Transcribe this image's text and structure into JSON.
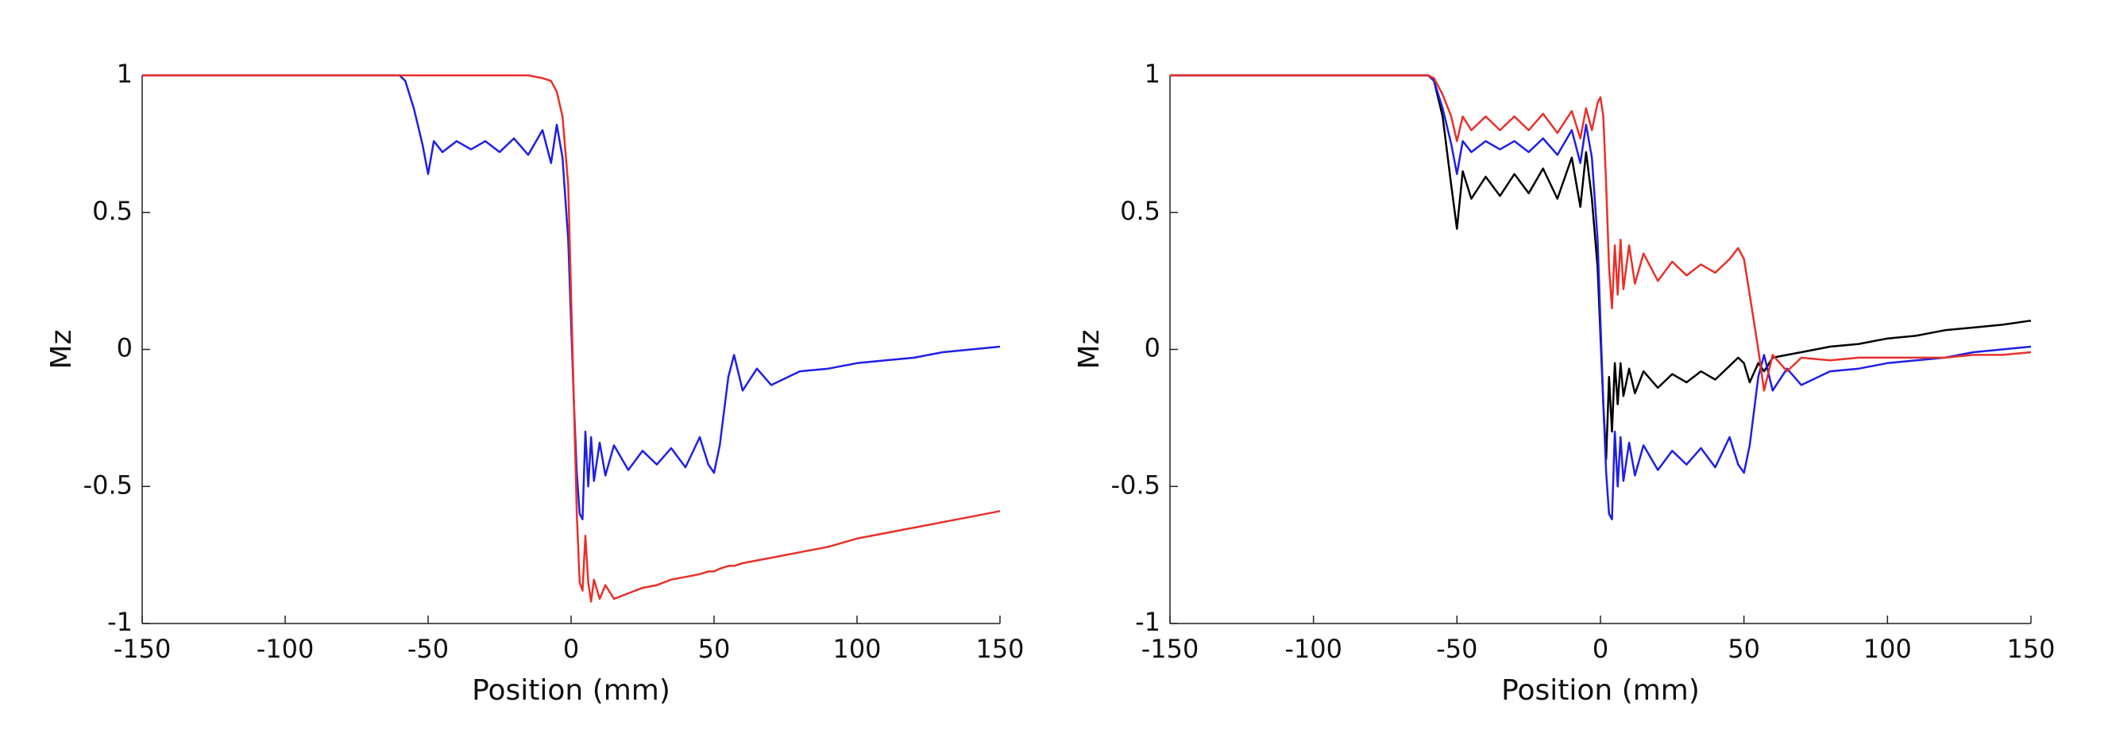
{
  "chart_data": [
    {
      "type": "line",
      "xlabel": "Position (mm)",
      "ylabel": "Mz",
      "x": [
        -150,
        -100,
        -70,
        -60,
        -58,
        -55,
        -52,
        -50,
        -48,
        -45,
        -40,
        -35,
        -30,
        -25,
        -20,
        -15,
        -10,
        -7,
        -5,
        -3,
        -1,
        0,
        1,
        2,
        3,
        4,
        5,
        6,
        7,
        8,
        10,
        12,
        15,
        20,
        25,
        30,
        35,
        40,
        45,
        48,
        50,
        52,
        55,
        57,
        60,
        65,
        70,
        80,
        90,
        100,
        110,
        120,
        130,
        140,
        150
      ],
      "xlim": [
        -150,
        150
      ],
      "xticks": [
        -150,
        -100,
        -50,
        0,
        50,
        100,
        150
      ],
      "ylim": [
        -1,
        1
      ],
      "yticks": [
        -1,
        -0.5,
        0,
        0.5,
        1
      ],
      "series": [
        {
          "color": "#1f1fe6",
          "values": [
            1,
            1,
            1,
            1,
            0.98,
            0.88,
            0.75,
            0.64,
            0.76,
            0.72,
            0.76,
            0.73,
            0.76,
            0.72,
            0.77,
            0.71,
            0.8,
            0.68,
            0.82,
            0.7,
            0.4,
            0.1,
            -0.2,
            -0.45,
            -0.6,
            -0.62,
            -0.3,
            -0.5,
            -0.32,
            -0.48,
            -0.34,
            -0.46,
            -0.35,
            -0.44,
            -0.37,
            -0.42,
            -0.36,
            -0.43,
            -0.32,
            -0.42,
            -0.45,
            -0.35,
            -0.1,
            -0.02,
            -0.15,
            -0.07,
            -0.13,
            -0.08,
            -0.07,
            -0.05,
            -0.04,
            -0.03,
            -0.01,
            0,
            0.01
          ]
        },
        {
          "color": "#e8302a",
          "values": [
            1,
            1,
            1,
            1,
            1,
            1,
            1,
            1,
            1,
            1,
            1,
            1,
            1,
            1,
            1,
            1,
            0.99,
            0.98,
            0.94,
            0.85,
            0.6,
            0.2,
            -0.2,
            -0.6,
            -0.85,
            -0.88,
            -0.68,
            -0.85,
            -0.92,
            -0.84,
            -0.91,
            -0.86,
            -0.91,
            -0.89,
            -0.87,
            -0.86,
            -0.84,
            -0.83,
            -0.82,
            -0.81,
            -0.81,
            -0.8,
            -0.79,
            -0.79,
            -0.78,
            -0.77,
            -0.76,
            -0.74,
            -0.72,
            -0.69,
            -0.67,
            -0.65,
            -0.63,
            -0.61,
            -0.59
          ]
        }
      ]
    },
    {
      "type": "line",
      "xlabel": "Position (mm)",
      "ylabel": "Mz",
      "x": [
        -150,
        -100,
        -70,
        -60,
        -58,
        -55,
        -52,
        -50,
        -48,
        -45,
        -40,
        -35,
        -30,
        -25,
        -20,
        -15,
        -10,
        -7,
        -5,
        -3,
        -1,
        0,
        1,
        2,
        3,
        4,
        5,
        6,
        7,
        8,
        10,
        12,
        15,
        20,
        25,
        30,
        35,
        40,
        45,
        48,
        50,
        52,
        55,
        57,
        60,
        65,
        70,
        80,
        90,
        100,
        110,
        120,
        130,
        140,
        150
      ],
      "xlim": [
        -150,
        150
      ],
      "xticks": [
        -150,
        -100,
        -50,
        0,
        50,
        100,
        150
      ],
      "ylim": [
        -1,
        1
      ],
      "yticks": [
        -1,
        -0.5,
        0,
        0.5,
        1
      ],
      "series": [
        {
          "color": "#000000",
          "values": [
            1,
            1,
            1,
            1,
            0.98,
            0.85,
            0.6,
            0.44,
            0.65,
            0.55,
            0.63,
            0.56,
            0.64,
            0.57,
            0.66,
            0.55,
            0.7,
            0.52,
            0.72,
            0.55,
            0.3,
            0.05,
            -0.2,
            -0.4,
            -0.1,
            -0.3,
            -0.05,
            -0.2,
            -0.05,
            -0.17,
            -0.07,
            -0.16,
            -0.08,
            -0.14,
            -0.09,
            -0.12,
            -0.08,
            -0.11,
            -0.06,
            -0.03,
            -0.05,
            -0.12,
            -0.05,
            -0.08,
            -0.03,
            -0.02,
            -0.01,
            0.01,
            0.02,
            0.04,
            0.05,
            0.07,
            0.08,
            0.09,
            0.105
          ]
        },
        {
          "color": "#1f1fe6",
          "values": [
            1,
            1,
            1,
            1,
            0.98,
            0.88,
            0.75,
            0.64,
            0.76,
            0.72,
            0.76,
            0.73,
            0.76,
            0.72,
            0.77,
            0.71,
            0.8,
            0.68,
            0.82,
            0.7,
            0.4,
            0.1,
            -0.2,
            -0.45,
            -0.6,
            -0.62,
            -0.3,
            -0.5,
            -0.32,
            -0.48,
            -0.34,
            -0.46,
            -0.35,
            -0.44,
            -0.37,
            -0.42,
            -0.36,
            -0.43,
            -0.32,
            -0.42,
            -0.45,
            -0.35,
            -0.1,
            -0.02,
            -0.15,
            -0.07,
            -0.13,
            -0.08,
            -0.07,
            -0.05,
            -0.04,
            -0.03,
            -0.01,
            0,
            0.01
          ]
        },
        {
          "color": "#e8302a",
          "values": [
            1,
            1,
            1,
            1,
            0.99,
            0.93,
            0.85,
            0.76,
            0.85,
            0.8,
            0.85,
            0.8,
            0.85,
            0.8,
            0.86,
            0.79,
            0.87,
            0.77,
            0.88,
            0.8,
            0.9,
            0.92,
            0.85,
            0.6,
            0.3,
            0.15,
            0.38,
            0.2,
            0.4,
            0.22,
            0.38,
            0.24,
            0.35,
            0.25,
            0.32,
            0.27,
            0.31,
            0.28,
            0.33,
            0.37,
            0.33,
            0.2,
            0,
            -0.15,
            -0.02,
            -0.08,
            -0.03,
            -0.04,
            -0.03,
            -0.03,
            -0.03,
            -0.03,
            -0.02,
            -0.02,
            -0.01
          ]
        }
      ]
    }
  ]
}
